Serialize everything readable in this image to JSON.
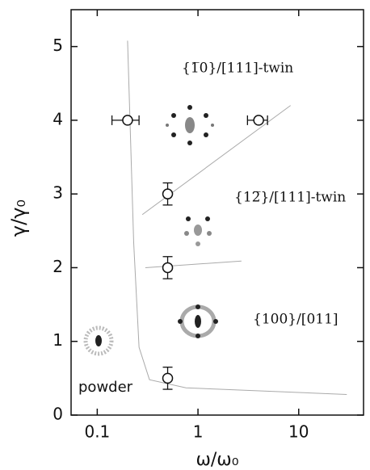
{
  "chart_data": {
    "type": "scatter",
    "x_label": "ω/ω₀",
    "y_label": "γ/γ₀",
    "x_scale": "log",
    "xlim": [
      0.055,
      44
    ],
    "ylim": [
      0,
      5.5
    ],
    "xticks": [
      0.1,
      1,
      10
    ],
    "yticks": [
      0,
      1,
      2,
      3,
      4,
      5
    ],
    "annotations": [
      "{1̅0}/[111]-twin",
      "{12̅}/[111]-twin",
      "{100}/[011]",
      "powder"
    ],
    "series": [
      {
        "color": "#111",
        "x": [
          0.2,
          4,
          0.5,
          0.5,
          0.5
        ],
        "y": [
          4,
          4,
          3,
          2,
          0.5
        ],
        "xerr": [
          0.06,
          0.9,
          null,
          null,
          null
        ],
        "yerr": [
          null,
          null,
          0.15,
          0.15,
          0.15
        ]
      }
    ],
    "curves": [
      {
        "color": "#aaa",
        "x": [
          0.2,
          0.23,
          0.26,
          0.33,
          0.76,
          30
        ],
        "y": [
          5.08,
          2.34,
          0.92,
          0.48,
          0.37,
          0.28
        ]
      },
      {
        "color": "#aaa",
        "x": [
          0.28,
          8.3
        ],
        "y": [
          2.72,
          4.2
        ]
      },
      {
        "color": "#aaa",
        "x": [
          0.3,
          2.7
        ],
        "y": [
          2.0,
          2.09
        ]
      }
    ]
  }
}
